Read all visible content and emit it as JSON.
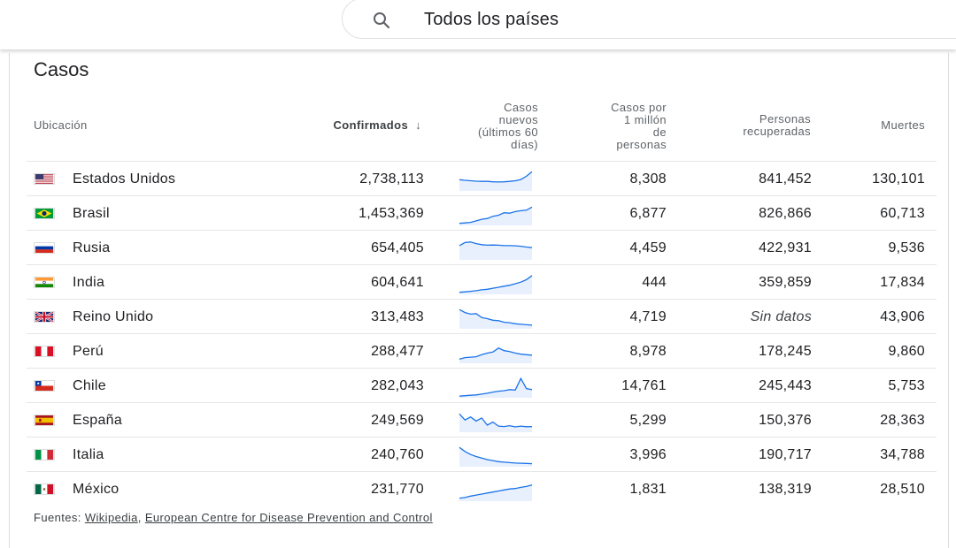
{
  "search": {
    "query": "Todos los países"
  },
  "section_title": "Casos",
  "columns": {
    "location": "Ubicación",
    "confirmed": "Confirmados",
    "new_cases": [
      "Casos",
      "nuevos",
      "(últimos 60",
      "días)"
    ],
    "per_million": [
      "Casos por",
      "1 millón",
      "de",
      "personas"
    ],
    "recovered": [
      "Personas",
      "recuperadas"
    ],
    "deaths": "Muertes"
  },
  "rows": [
    {
      "country": "Estados Unidos",
      "flag": "us",
      "confirmed": "2,738,113",
      "per_million": "8,308",
      "recovered": "841,452",
      "deaths": "130,101",
      "trend": [
        0.55,
        0.52,
        0.5,
        0.48,
        0.47,
        0.47,
        0.45,
        0.44,
        0.45,
        0.47,
        0.5,
        0.56,
        0.72,
        0.95
      ]
    },
    {
      "country": "Brasil",
      "flag": "br",
      "confirmed": "1,453,369",
      "per_million": "6,877",
      "recovered": "826,866",
      "deaths": "60,713",
      "trend": [
        0.1,
        0.12,
        0.15,
        0.22,
        0.3,
        0.34,
        0.45,
        0.5,
        0.62,
        0.6,
        0.68,
        0.72,
        0.75,
        0.9
      ]
    },
    {
      "country": "Rusia",
      "flag": "ru",
      "confirmed": "654,405",
      "per_million": "4,459",
      "recovered": "422,931",
      "deaths": "9,536",
      "trend": [
        0.7,
        0.85,
        0.88,
        0.8,
        0.75,
        0.72,
        0.73,
        0.72,
        0.7,
        0.7,
        0.69,
        0.67,
        0.63,
        0.6
      ]
    },
    {
      "country": "India",
      "flag": "in",
      "confirmed": "604,641",
      "per_million": "444",
      "recovered": "359,859",
      "deaths": "17,834",
      "trend": [
        0.1,
        0.12,
        0.15,
        0.18,
        0.22,
        0.25,
        0.3,
        0.35,
        0.4,
        0.45,
        0.52,
        0.6,
        0.72,
        0.92
      ]
    },
    {
      "country": "Reino Unido",
      "flag": "gb",
      "confirmed": "313,483",
      "per_million": "4,719",
      "recovered": "Sin datos",
      "deaths": "43,906",
      "trend": [
        0.95,
        0.8,
        0.72,
        0.75,
        0.55,
        0.5,
        0.42,
        0.4,
        0.32,
        0.3,
        0.25,
        0.22,
        0.2,
        0.18
      ]
    },
    {
      "country": "Perú",
      "flag": "pe",
      "confirmed": "288,477",
      "per_million": "8,978",
      "recovered": "178,245",
      "deaths": "9,860",
      "trend": [
        0.2,
        0.28,
        0.3,
        0.32,
        0.42,
        0.5,
        0.55,
        0.75,
        0.62,
        0.58,
        0.5,
        0.45,
        0.42,
        0.4
      ]
    },
    {
      "country": "Chile",
      "flag": "cl",
      "confirmed": "282,043",
      "per_million": "14,761",
      "recovered": "245,443",
      "deaths": "5,753",
      "trend": [
        0.08,
        0.1,
        0.12,
        0.14,
        0.18,
        0.22,
        0.28,
        0.32,
        0.35,
        0.4,
        0.38,
        0.95,
        0.45,
        0.4
      ]
    },
    {
      "country": "España",
      "flag": "es",
      "confirmed": "249,569",
      "per_million": "5,299",
      "recovered": "150,376",
      "deaths": "28,363",
      "trend": [
        0.9,
        0.6,
        0.75,
        0.55,
        0.7,
        0.35,
        0.5,
        0.3,
        0.28,
        0.32,
        0.26,
        0.3,
        0.27,
        0.28
      ]
    },
    {
      "country": "Italia",
      "flag": "it",
      "confirmed": "240,760",
      "per_million": "3,996",
      "recovered": "190,717",
      "deaths": "34,788",
      "trend": [
        0.95,
        0.75,
        0.6,
        0.5,
        0.42,
        0.35,
        0.3,
        0.25,
        0.22,
        0.2,
        0.18,
        0.17,
        0.16,
        0.15
      ]
    },
    {
      "country": "México",
      "flag": "mx",
      "confirmed": "231,770",
      "per_million": "1,831",
      "recovered": "138,319",
      "deaths": "28,510",
      "trend": [
        0.15,
        0.18,
        0.25,
        0.3,
        0.35,
        0.4,
        0.45,
        0.5,
        0.55,
        0.6,
        0.62,
        0.68,
        0.72,
        0.8
      ]
    }
  ],
  "footer": {
    "prefix": "Fuentes:",
    "source_1": "Wikipedia",
    "separator": ",",
    "source_2": "European Centre for Disease Prevention and Control"
  },
  "colors": {
    "spark_line": "#1a73e8",
    "spark_fill": "#e8f0fe"
  }
}
